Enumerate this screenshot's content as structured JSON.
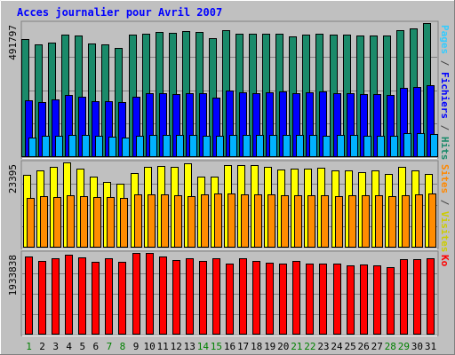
{
  "chart_data": {
    "type": "bar",
    "title": "Acces journalier pour Avril 2007",
    "categories": [
      "1",
      "2",
      "3",
      "4",
      "5",
      "6",
      "7",
      "8",
      "9",
      "10",
      "11",
      "12",
      "13",
      "14",
      "15",
      "16",
      "17",
      "18",
      "19",
      "20",
      "21",
      "22",
      "23",
      "24",
      "25",
      "26",
      "27",
      "28",
      "29",
      "30",
      "31"
    ],
    "weekend_days": [
      "1",
      "7",
      "8",
      "14",
      "15",
      "21",
      "22",
      "28",
      "29"
    ],
    "colors": {
      "background": "#c0c0c0",
      "frame_dark": "#808080",
      "frame_light": "#ffffff",
      "grid": "#808080",
      "title": "#0000ff",
      "weekday_label": "#000000",
      "weekend_label": "#008000"
    },
    "panels": [
      {
        "ylabel_parts": [
          {
            "text": "Pages",
            "color": "#33ccff"
          },
          {
            "text": " / ",
            "color": "#444444"
          },
          {
            "text": "Fichiers",
            "color": "#0000ff"
          },
          {
            "text": " / ",
            "color": "#444444"
          },
          {
            "text": "Hits",
            "color": "#1a8a6a"
          }
        ],
        "max_label": "491797",
        "ylim": [
          0,
          491797
        ],
        "series": [
          {
            "name": "Hits",
            "color": "#1a8a6a",
            "values": [
              432000,
              415000,
              420000,
              450000,
              447000,
              418000,
              415000,
              402000,
              450000,
              452000,
              460000,
              455000,
              462000,
              460000,
              437000,
              465000,
              453000,
              453000,
              452000,
              452000,
              442000,
              451000,
              453000,
              450000,
              450000,
              446000,
              447000,
              447000,
              467000,
              473000,
              491797
            ]
          },
          {
            "name": "Fichiers",
            "color": "#0000ff",
            "values": [
              207000,
              203000,
              213000,
              227000,
              223000,
              206000,
              205000,
              201000,
              222000,
              233000,
              236000,
              230000,
              233000,
              234000,
              217000,
              245000,
              238000,
              236000,
              238000,
              241000,
              236000,
              238000,
              241000,
              236000,
              234000,
              232000,
              231000,
              229000,
              253000,
              256000,
              263000
            ]
          },
          {
            "name": "Pages",
            "color": "#00b2ff",
            "values": [
              73000,
              78000,
              77000,
              82000,
              80000,
              77000,
              75000,
              71000,
              78000,
              80000,
              82000,
              82000,
              81000,
              79000,
              78000,
              82000,
              80000,
              81000,
              83000,
              80000,
              82000,
              80000,
              78000,
              81000,
              80000,
              79000,
              79000,
              79000,
              89000,
              88000,
              86000
            ]
          }
        ]
      },
      {
        "ylabel_parts": [
          {
            "text": "Sites",
            "color": "#ff8800"
          },
          {
            "text": " / ",
            "color": "#444444"
          },
          {
            "text": "Visites",
            "color": "#cccc00"
          }
        ],
        "max_label": "23395",
        "ylim": [
          0,
          23395
        ],
        "series": [
          {
            "name": "Visites",
            "color": "#ffff00",
            "values": [
              20100,
              21300,
              22100,
              23395,
              21700,
              19400,
              18000,
              17500,
              20400,
              22200,
              22500,
              22200,
              23100,
              19600,
              19600,
              22600,
              22600,
              22600,
              22200,
              21500,
              21700,
              21600,
              21900,
              21200,
              21100,
              20700,
              21100,
              20200,
              22100,
              21300,
              20200
            ]
          },
          {
            "name": "Sites",
            "color": "#ff8c00",
            "values": [
              13700,
              14100,
              13900,
              14400,
              14200,
              13900,
              14000,
              13700,
              14600,
              14700,
              14600,
              14500,
              14200,
              14600,
              14900,
              14800,
              14600,
              14600,
              14700,
              14400,
              14300,
              14500,
              14500,
              14200,
              14300,
              14400,
              14300,
              14200,
              14500,
              14700,
              14800
            ]
          }
        ]
      },
      {
        "ylabel_parts": [
          {
            "text": "Ko",
            "color": "#ff0000"
          }
        ],
        "max_label": "1933838",
        "ylim": [
          0,
          1933838
        ],
        "series": [
          {
            "name": "Ko",
            "color": "#ff0000",
            "values": [
              1845000,
              1740000,
              1800000,
              1895000,
              1820000,
              1720000,
              1810000,
              1728000,
              1933838,
              1933838,
              1850000,
              1760000,
              1800000,
              1754000,
              1810000,
              1680000,
              1815000,
              1736000,
              1705000,
              1680000,
              1742000,
              1684000,
              1692000,
              1677000,
              1633000,
              1653000,
              1637000,
              1605000,
              1787000,
              1788000,
              1800000
            ]
          }
        ]
      }
    ]
  }
}
